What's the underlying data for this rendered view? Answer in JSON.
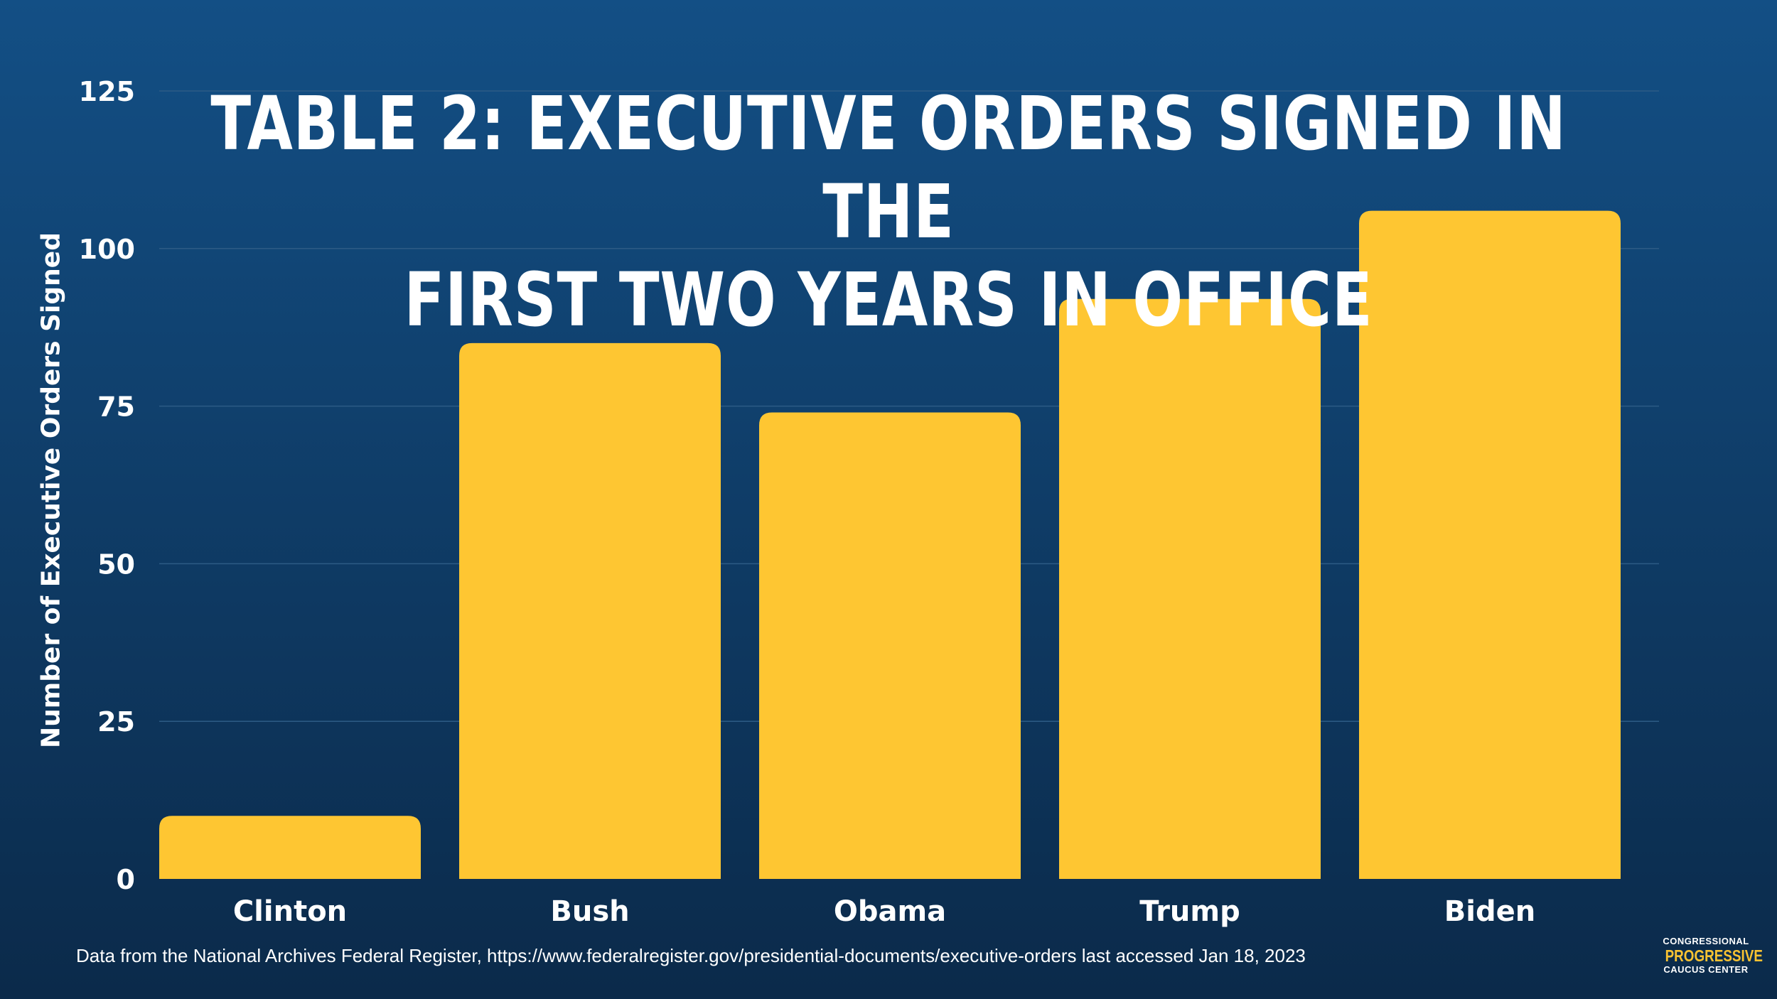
{
  "title_lines": [
    "TABLE 2: EXECUTIVE ORDERS SIGNED IN THE",
    "FIRST TWO YEARS IN OFFICE"
  ],
  "source_note": "Data from the National Archives Federal Register, https://www.federalregister.gov/presidential-documents/executive-orders last accessed Jan 18, 2023",
  "logo": {
    "line1": "CONGRESSIONAL",
    "line2": "PROGRESSIVE",
    "line3": "CAUCUS CENTER"
  },
  "colors": {
    "background_top": "#134f85",
    "background_bottom": "#0b2a4a",
    "bar": "#fec632",
    "text": "#ffffff",
    "gridline": "#2d5b85",
    "logo_accent": "#f9c232"
  },
  "chart_data": {
    "type": "bar",
    "title": "TABLE 2: EXECUTIVE ORDERS SIGNED IN THE FIRST TWO YEARS IN OFFICE",
    "xlabel": "",
    "ylabel": "Number of Executive Orders Signed",
    "categories": [
      "Clinton",
      "Bush",
      "Obama",
      "Trump",
      "Biden"
    ],
    "values": [
      10,
      85,
      74,
      92,
      106
    ],
    "ylim": [
      0,
      125
    ],
    "yticks": [
      0,
      25,
      50,
      75,
      100,
      125
    ],
    "grid": true,
    "legend": "none"
  }
}
